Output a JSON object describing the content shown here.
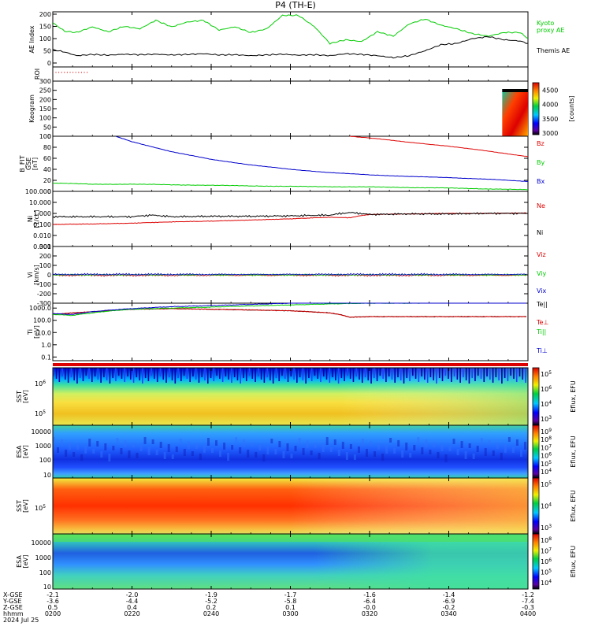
{
  "title": "P4 (TH-E)",
  "footer": {
    "row_labels": [
      "X-GSE",
      "Y-GSE",
      "Z-GSE",
      "hhmm",
      "2024 Jul 25"
    ],
    "times": [
      "0200",
      "0220",
      "0240",
      "0300",
      "0320",
      "0340",
      "0400"
    ],
    "x_gse": [
      "-2.1",
      "-2.0",
      "-1.9",
      "-1.7",
      "-1.6",
      "-1.4",
      "-1.2"
    ],
    "y_gse": [
      "-3.6",
      "-4.4",
      "-5.2",
      "-5.8",
      "-6.4",
      "-6.9",
      "-7.4"
    ],
    "z_gse": [
      "0.5",
      "0.4",
      "0.2",
      "0.1",
      "-0.0",
      "-0.2",
      "-0.3"
    ]
  },
  "colors": {
    "black": "#000000",
    "red": "#dd0000",
    "green": "#00cc00",
    "blue": "#0000cc"
  },
  "chart_data": [
    {
      "type": "line",
      "panel": "ae",
      "ylabel": "AE Index",
      "ylim": [
        0,
        200
      ],
      "yticks": [
        "0",
        "50",
        "100",
        "150",
        "200"
      ],
      "series": [
        {
          "name": "Kyoto proxy AE",
          "label_lines": [
            "Kyoto",
            "proxy AE"
          ],
          "color": "#00cc00",
          "x": [
            0,
            3,
            6,
            10,
            14,
            18,
            22,
            26,
            30,
            34,
            38,
            42,
            46,
            50,
            54,
            58,
            62,
            66,
            70,
            74,
            78,
            82,
            86,
            90,
            94,
            98,
            102,
            106,
            110,
            114,
            118,
            120
          ],
          "values": [
            165,
            130,
            125,
            148,
            128,
            150,
            140,
            175,
            148,
            168,
            175,
            135,
            148,
            125,
            140,
            195,
            195,
            150,
            80,
            95,
            88,
            128,
            110,
            160,
            180,
            155,
            140,
            120,
            110,
            125,
            125,
            100
          ]
        },
        {
          "name": "Themis AE",
          "label_lines": [
            "Themis AE"
          ],
          "color": "#000000",
          "x": [
            0,
            3,
            6,
            10,
            14,
            18,
            22,
            26,
            30,
            34,
            38,
            42,
            46,
            50,
            54,
            58,
            62,
            66,
            70,
            74,
            78,
            82,
            86,
            90,
            94,
            98,
            102,
            106,
            110,
            114,
            118,
            120
          ],
          "values": [
            55,
            45,
            30,
            35,
            32,
            36,
            34,
            36,
            33,
            35,
            38,
            33,
            34,
            30,
            33,
            36,
            32,
            34,
            30,
            38,
            35,
            30,
            22,
            30,
            50,
            75,
            80,
            100,
            108,
            95,
            90,
            80
          ]
        }
      ]
    },
    {
      "type": "line",
      "panel": "roi",
      "ylabel": "ROI"
    },
    {
      "type": "heatmap",
      "panel": "keogram",
      "ylabel": "Keogram",
      "ylim": [
        0,
        300
      ],
      "yticks": [
        "0",
        "50",
        "100",
        "150",
        "200",
        "250",
        "300"
      ],
      "colorbar": {
        "label": "[counts]",
        "range": [
          3000,
          4700
        ],
        "ticks": [
          "3000",
          "3500",
          "4000",
          "4500"
        ]
      },
      "data_start_min": 113.5
    },
    {
      "type": "line",
      "panel": "bfield",
      "ylabel": "B_FIT GSE [nT]",
      "ylabel_lines": [
        "B_FIT",
        "GSE",
        "[nT]"
      ],
      "ylim": [
        0,
        100
      ],
      "yticks": [
        "0",
        "20",
        "40",
        "60",
        "80",
        "100"
      ],
      "series": [
        {
          "name": "Bz",
          "color": "#dd0000",
          "x": [
            75,
            80,
            90,
            100,
            110,
            120
          ],
          "values": [
            100,
            97,
            89,
            82,
            73,
            63
          ]
        },
        {
          "name": "By",
          "color": "#00cc00",
          "x": [
            0,
            10,
            20,
            40,
            60,
            80,
            100,
            120
          ],
          "values": [
            15,
            13,
            13,
            11,
            9,
            8,
            6,
            3
          ]
        },
        {
          "name": "Bx",
          "color": "#0000cc",
          "x": [
            15,
            20,
            30,
            40,
            50,
            60,
            70,
            80,
            90,
            100,
            110,
            120
          ],
          "values": [
            102,
            90,
            72,
            58,
            48,
            40,
            34,
            30,
            27,
            25,
            22,
            18
          ]
        }
      ]
    },
    {
      "type": "line",
      "panel": "density",
      "yscale": "log",
      "ylabel": "Ni [1/cc]",
      "ylabel_lines": [
        "Ni",
        "[1/cc]"
      ],
      "yticks": [
        "0.001",
        "0.010",
        "0.100",
        "1.000",
        "10.000",
        "100.000"
      ],
      "series": [
        {
          "name": "Ne",
          "color": "#dd0000",
          "x": [
            0,
            10,
            20,
            30,
            40,
            50,
            60,
            70,
            75,
            80,
            90,
            100,
            110,
            120
          ],
          "values": [
            0.1,
            0.11,
            0.13,
            0.17,
            0.2,
            0.25,
            0.32,
            0.45,
            0.4,
            0.8,
            0.9,
            1.0,
            1.0,
            1.1
          ]
        },
        {
          "name": "Ni",
          "color": "#000000",
          "x": [
            0,
            10,
            20,
            25,
            30,
            40,
            50,
            60,
            70,
            75,
            80,
            90,
            100,
            110,
            120
          ],
          "values": [
            0.5,
            0.5,
            0.5,
            0.7,
            0.5,
            0.55,
            0.55,
            0.6,
            0.7,
            1.2,
            0.8,
            0.9,
            0.9,
            1.0,
            1.0
          ]
        }
      ]
    },
    {
      "type": "line",
      "panel": "velocity",
      "ylabel": "Vi [km/s]",
      "ylabel_lines": [
        "Vi",
        "[km/s]"
      ],
      "ylim": [
        -300,
        300
      ],
      "yticks": [
        "-300",
        "-200",
        "-100",
        "0",
        "100",
        "200",
        "300"
      ],
      "series": [
        {
          "name": "Viz",
          "color": "#dd0000",
          "level": -5
        },
        {
          "name": "Viy",
          "color": "#00cc00",
          "level": 0
        },
        {
          "name": "Vix",
          "color": "#0000cc",
          "level": 5
        }
      ]
    },
    {
      "type": "line",
      "panel": "temperature",
      "yscale": "log",
      "ylabel": "Ti [eV]",
      "ylabel_lines": [
        "Ti",
        "[eV]"
      ],
      "yticks": [
        "0.1",
        "1.0",
        "10.0",
        "100.0",
        "1000.0"
      ],
      "series": [
        {
          "name": "Te||",
          "label": "Te||",
          "color": "#000000",
          "x": [
            0,
            10,
            20,
            30,
            40,
            60,
            70,
            75,
            80,
            90,
            100,
            110,
            120
          ],
          "values": [
            300,
            500,
            800,
            900,
            800,
            600,
            400,
            180,
            200,
            200,
            200,
            200,
            200
          ]
        },
        {
          "name": "Te⊥",
          "label": "Te⊥",
          "color": "#dd0000",
          "x": [
            0,
            10,
            20,
            30,
            40,
            60,
            70,
            75,
            80,
            90,
            100,
            110,
            120
          ],
          "values": [
            300,
            500,
            800,
            900,
            800,
            600,
            400,
            180,
            200,
            200,
            200,
            200,
            200
          ]
        },
        {
          "name": "Ti||",
          "label": "Ti||",
          "color": "#00cc00",
          "x": [
            0,
            5,
            10,
            20,
            30,
            40,
            50,
            60,
            70,
            80,
            90,
            100,
            110,
            120
          ],
          "values": [
            300,
            250,
            400,
            800,
            1000,
            1200,
            1500,
            1800,
            2200,
            2500,
            2500,
            2800,
            3000,
            3000
          ]
        },
        {
          "name": "Ti⊥",
          "label": "Ti⊥",
          "color": "#0000cc",
          "x": [
            0,
            5,
            10,
            20,
            30,
            40,
            50,
            60,
            70,
            80,
            90,
            100,
            110,
            120
          ],
          "values": [
            350,
            300,
            500,
            900,
            1300,
            1600,
            2000,
            2500,
            3000,
            3500,
            3600,
            4000,
            4000,
            4000
          ]
        }
      ]
    },
    {
      "type": "heatmap",
      "panel": "sst_e",
      "ylabel": "SST [eV]",
      "ylabel_lines": [
        "SST",
        "[eV]"
      ],
      "yticks": [
        "10^6",
        "10^5"
      ],
      "colorbar": {
        "label": "Eflux, EFU",
        "ticks": [
          "10^5",
          "10^6",
          "10^4",
          "10^3"
        ]
      }
    },
    {
      "type": "heatmap",
      "panel": "esa_e",
      "ylabel": "ESA [eV]",
      "ylabel_lines": [
        "ESA",
        "[eV]"
      ],
      "yticks": [
        "10000",
        "1000",
        "100",
        "10"
      ],
      "colorbar": {
        "label": "Eflux, EFU",
        "ticks": [
          "10^9",
          "10^8",
          "10^7",
          "10^6",
          "10^5",
          "10^4"
        ]
      }
    },
    {
      "type": "heatmap",
      "panel": "sst_i",
      "ylabel": "SST [eV]",
      "ylabel_lines": [
        "SST",
        "[eV]"
      ],
      "yticks": [
        "10^5"
      ],
      "colorbar": {
        "label": "Eflux, EFU",
        "ticks": [
          "10^5",
          "10^4",
          "10^3"
        ]
      }
    },
    {
      "type": "heatmap",
      "panel": "esa_i",
      "ylabel": "ESA [eV]",
      "ylabel_lines": [
        "ESA",
        "[eV]"
      ],
      "yticks": [
        "10000",
        "1000",
        "100",
        "10"
      ],
      "colorbar": {
        "label": "Eflux, EFU",
        "ticks": [
          "10^8",
          "10^7",
          "10^6",
          "10^5",
          "10^4"
        ]
      }
    }
  ]
}
